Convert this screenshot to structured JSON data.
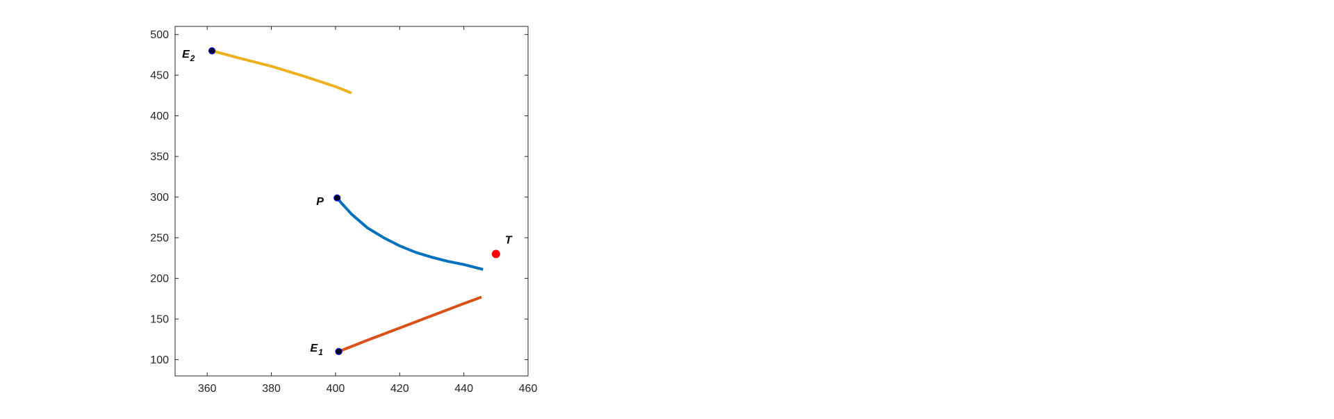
{
  "chart_data": {
    "type": "line",
    "title": "",
    "xlabel": "",
    "ylabel": "",
    "xlim": [
      350,
      460
    ],
    "ylim": [
      80,
      510
    ],
    "xticks": [
      360,
      380,
      400,
      420,
      440,
      460
    ],
    "yticks": [
      100,
      150,
      200,
      250,
      300,
      350,
      400,
      450,
      500
    ],
    "grid": false,
    "series": [
      {
        "color": "#0072BD",
        "start_marker": true,
        "points": [
          [
            400.5,
            299
          ],
          [
            402,
            292
          ],
          [
            405,
            279
          ],
          [
            410,
            262
          ],
          [
            415,
            250
          ],
          [
            420,
            240
          ],
          [
            425,
            232
          ],
          [
            430,
            226
          ],
          [
            435,
            221
          ],
          [
            440,
            217
          ],
          [
            446,
            211
          ]
        ]
      },
      {
        "color": "#D95319",
        "start_marker": true,
        "points": [
          [
            401,
            110
          ],
          [
            410,
            124
          ],
          [
            420,
            139
          ],
          [
            430,
            154
          ],
          [
            440,
            169
          ],
          [
            445.5,
            177
          ]
        ]
      },
      {
        "color": "#EDB120",
        "start_marker": true,
        "points": [
          [
            361.5,
            480
          ],
          [
            370,
            471
          ],
          [
            380,
            461
          ],
          [
            390,
            449
          ],
          [
            400,
            436
          ],
          [
            405,
            428
          ]
        ]
      }
    ],
    "target": {
      "x": 450,
      "y": 230,
      "color": "#FF0000"
    },
    "annotations": [
      {
        "main": "P",
        "sub": "",
        "x": 400.5,
        "y": 299
      },
      {
        "main": "E",
        "sub": "1",
        "x": 401,
        "y": 110
      },
      {
        "main": "E",
        "sub": "2",
        "x": 361.5,
        "y": 480
      },
      {
        "main": "T",
        "sub": "",
        "x": 450,
        "y": 230
      }
    ]
  }
}
